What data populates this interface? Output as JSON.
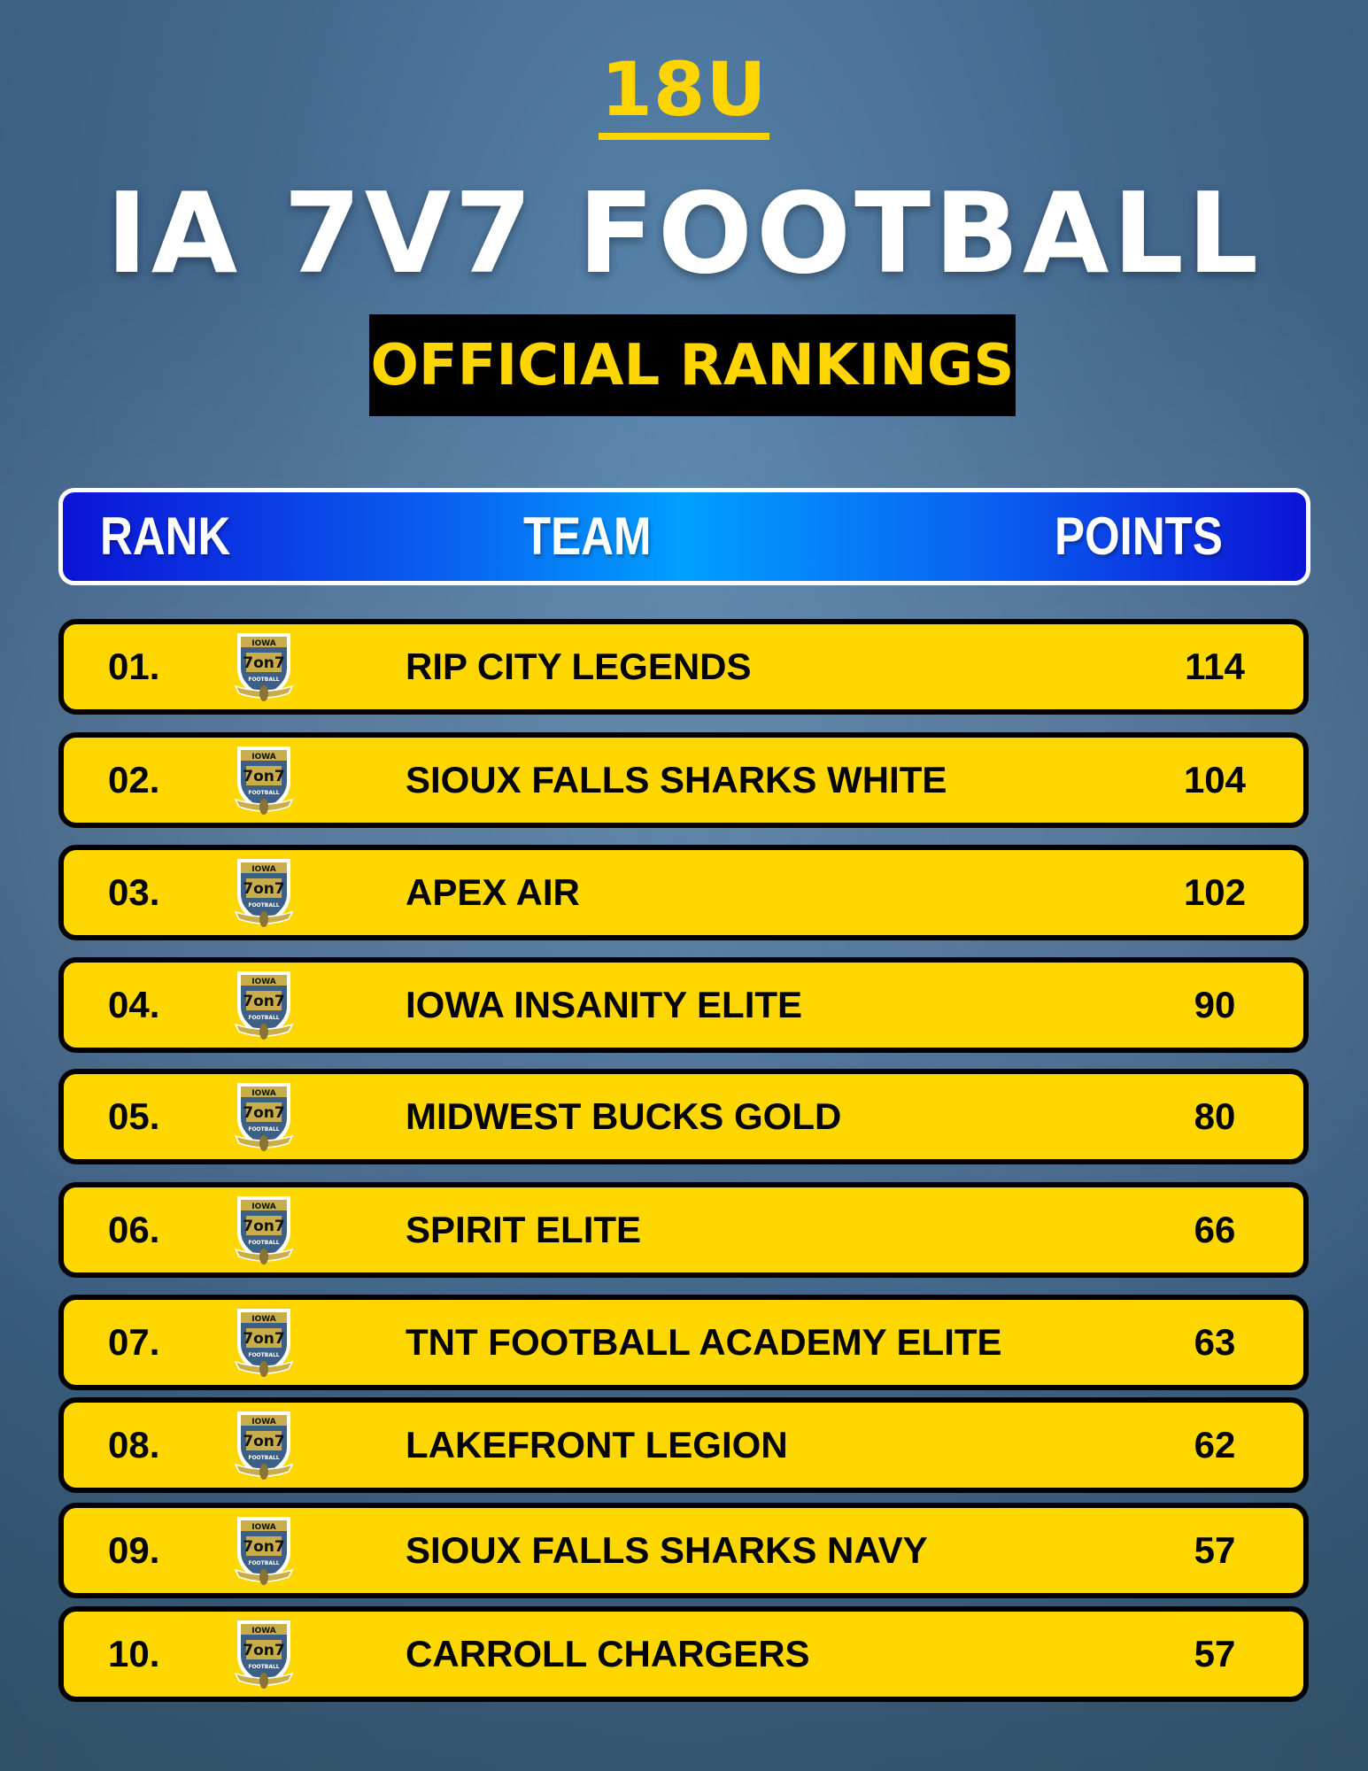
{
  "division": "18U",
  "title": "IA 7V7 FOOTBALL",
  "subtitle": "OFFICIAL RANKINGS",
  "colors": {
    "accent_yellow": "#ffd700",
    "header_blue": "#0a5ef0",
    "background": "#44698f"
  },
  "header": {
    "rank": "RANK",
    "team": "TEAM",
    "points": "POINTS"
  },
  "logo": {
    "icon": "iowa-7on7-football-shield-logo",
    "text": [
      "IOWA",
      "7 ON 7",
      "FOOTBALL"
    ]
  },
  "rows": [
    {
      "rank": "01.",
      "team": "RIP CITY LEGENDS",
      "points": "114"
    },
    {
      "rank": "02.",
      "team": "SIOUX FALLS SHARKS WHITE",
      "points": "104"
    },
    {
      "rank": "03.",
      "team": "APEX AIR",
      "points": "102"
    },
    {
      "rank": "04.",
      "team": "IOWA INSANITY ELITE",
      "points": "90"
    },
    {
      "rank": "05.",
      "team": "MIDWEST BUCKS GOLD",
      "points": "80"
    },
    {
      "rank": "06.",
      "team": "SPIRIT ELITE",
      "points": "66"
    },
    {
      "rank": "07.",
      "team": "TNT FOOTBALL ACADEMY ELITE",
      "points": "63"
    },
    {
      "rank": "08.",
      "team": "LAKEFRONT LEGION",
      "points": "62"
    },
    {
      "rank": "09.",
      "team": "SIOUX FALLS SHARKS NAVY",
      "points": "57"
    },
    {
      "rank": "10.",
      "team": "CARROLL CHARGERS",
      "points": "57"
    }
  ]
}
